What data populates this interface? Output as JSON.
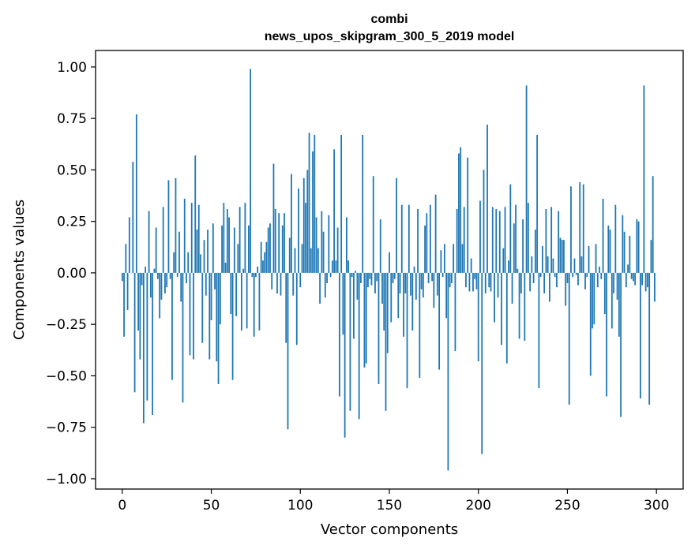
{
  "chart_data": {
    "type": "bar",
    "title": "combi",
    "subtitle": "news_upos_skipgram_300_5_2019 model",
    "xlabel": "Vector components",
    "ylabel": "Components values",
    "xlim": [
      -15,
      315
    ],
    "ylim": [
      -1.05,
      1.08
    ],
    "xticks": [
      "0",
      "50",
      "100",
      "150",
      "200",
      "250",
      "300"
    ],
    "yticks": [
      "1.00",
      "0.75",
      "0.50",
      "0.25",
      "0.00",
      "−0.25",
      "−0.50",
      "−0.75",
      "−1.00"
    ],
    "x_start": 0,
    "bar_color": "#1f77b4",
    "grid": false,
    "values": [
      -0.04,
      -0.31,
      0.14,
      -0.18,
      0.27,
      0.0,
      0.54,
      -0.58,
      0.77,
      -0.28,
      -0.42,
      -0.06,
      -0.73,
      0.03,
      -0.62,
      0.3,
      -0.12,
      -0.69,
      0.02,
      0.22,
      -0.03,
      -0.22,
      -0.13,
      0.32,
      -0.1,
      -0.07,
      0.45,
      -0.03,
      -0.52,
      0.1,
      0.46,
      -0.02,
      0.2,
      -0.14,
      -0.63,
      0.36,
      -0.05,
      0.1,
      -0.4,
      0.34,
      -0.42,
      0.57,
      0.21,
      0.33,
      0.09,
      -0.34,
      0.16,
      -0.11,
      0.21,
      -0.42,
      -0.23,
      0.24,
      -0.08,
      -0.43,
      -0.54,
      -0.25,
      0.23,
      0.34,
      0.05,
      0.31,
      0.27,
      -0.2,
      -0.52,
      0.22,
      -0.21,
      0.14,
      0.32,
      -0.28,
      0.02,
      0.34,
      -0.27,
      0.23,
      0.99,
      -0.02,
      -0.31,
      -0.02,
      0.03,
      -0.28,
      0.15,
      0.06,
      0.1,
      0.15,
      0.22,
      0.24,
      -0.08,
      0.53,
      0.31,
      -0.1,
      0.29,
      -0.11,
      0.23,
      0.29,
      -0.34,
      -0.76,
      0.17,
      0.48,
      -0.11,
      0.12,
      -0.35,
      0.41,
      -0.07,
      0.14,
      0.46,
      0.34,
      0.5,
      0.68,
      0.12,
      0.59,
      0.67,
      0.27,
      0.12,
      -0.15,
      0.3,
      0.2,
      -0.12,
      -0.05,
      0.28,
      -0.02,
      0.06,
      0.6,
      0.06,
      0.22,
      -0.6,
      0.67,
      -0.3,
      -0.8,
      0.27,
      0.06,
      -0.67,
      -0.02,
      -0.32,
      0.01,
      -0.13,
      -0.71,
      -0.05,
      0.67,
      -0.46,
      -0.44,
      -0.07,
      -0.03,
      -0.06,
      0.47,
      -0.1,
      -0.04,
      -0.54,
      0.26,
      -0.15,
      -0.28,
      -0.67,
      -0.39,
      0.1,
      -0.24,
      -0.05,
      -0.03,
      0.46,
      -0.22,
      -0.1,
      0.33,
      -0.31,
      -0.1,
      -0.56,
      0.33,
      -0.11,
      -0.28,
      0.03,
      -0.13,
      0.31,
      -0.51,
      -0.08,
      -0.12,
      0.23,
      0.29,
      -0.05,
      0.33,
      -0.04,
      -0.17,
      0.38,
      -0.11,
      -0.47,
      0.11,
      -0.02,
      0.14,
      -0.22,
      -0.96,
      -0.07,
      -0.05,
      0.14,
      -0.38,
      0.31,
      0.58,
      0.61,
      0.14,
      0.32,
      -0.07,
      0.56,
      -0.09,
      0.07,
      -0.09,
      -0.03,
      -0.08,
      -0.43,
      0.35,
      -0.88,
      0.5,
      -0.1,
      0.72,
      -0.07,
      -0.09,
      0.32,
      -0.24,
      0.31,
      -0.12,
      0.3,
      -0.35,
      0.12,
      0.32,
      -0.44,
      0.06,
      0.43,
      -0.15,
      0.24,
      0.33,
      0.02,
      -0.32,
      -0.1,
      0.26,
      -0.33,
      0.91,
      0.34,
      -0.09,
      0.08,
      -0.05,
      0.21,
      0.67,
      -0.56,
      -0.02,
      0.13,
      -0.1,
      0.31,
      0.08,
      -0.14,
      0.32,
      0.07,
      -0.02,
      -0.07,
      0.3,
      0.17,
      0.16,
      0.16,
      -0.16,
      -0.05,
      -0.64,
      0.42,
      -0.02,
      0.07,
      -0.01,
      -0.06,
      0.44,
      0.08,
      0.43,
      -0.08,
      -0.02,
      0.13,
      -0.5,
      -0.27,
      -0.25,
      0.14,
      -0.07,
      0.03,
      -0.03,
      0.36,
      -0.2,
      -0.6,
      0.23,
      0.21,
      -0.27,
      -0.1,
      0.33,
      -0.13,
      -0.31,
      -0.7,
      0.28,
      0.2,
      -0.07,
      0.04,
      0.18,
      -0.03,
      -0.04,
      -0.06,
      0.26,
      0.25,
      -0.61,
      -0.06,
      0.91,
      -0.09,
      -0.07,
      -0.64,
      0.16,
      0.47,
      -0.14
    ]
  }
}
